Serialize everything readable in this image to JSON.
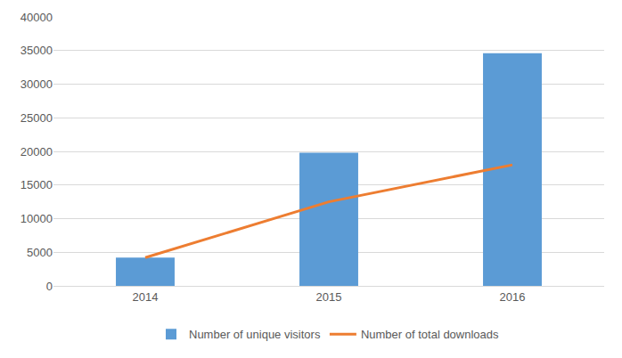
{
  "chart_data": {
    "type": "bar",
    "categories": [
      "2014",
      "2015",
      "2016"
    ],
    "series": [
      {
        "name": "Number of unique visitors",
        "type": "bar",
        "color": "#5b9bd5",
        "values": [
          4200,
          19800,
          34600
        ]
      },
      {
        "name": "Number of total downloads",
        "type": "line",
        "color": "#ed7d31",
        "values": [
          4200,
          12500,
          18000
        ]
      }
    ],
    "ylim": [
      0,
      40000
    ],
    "yticks": [
      0,
      5000,
      10000,
      15000,
      20000,
      25000,
      30000,
      35000,
      40000
    ],
    "grid": true,
    "legend": "bottom"
  }
}
